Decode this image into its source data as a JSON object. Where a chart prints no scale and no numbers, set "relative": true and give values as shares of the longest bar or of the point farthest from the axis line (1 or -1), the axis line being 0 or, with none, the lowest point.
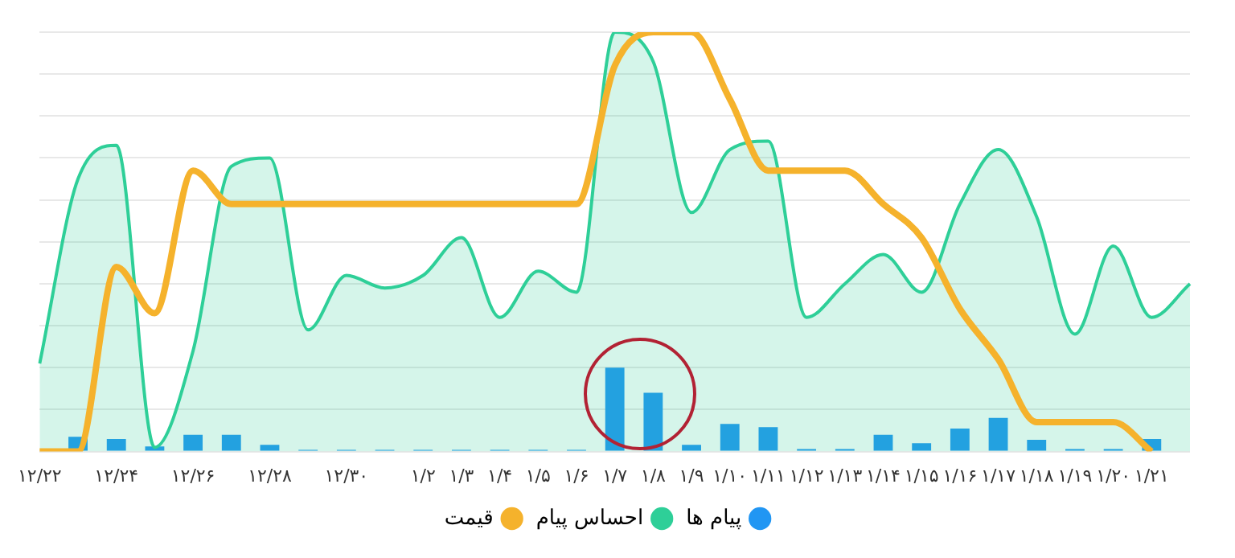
{
  "chart_data": {
    "type": "line",
    "relative": true,
    "grid": "y",
    "legend": "bottom",
    "marker": "none",
    "line_style": "solid",
    "categories": [
      "۱۲/۲۲",
      null,
      "۱۲/۲۴",
      null,
      "۱۲/۲۶",
      null,
      "۱۲/۲۸",
      null,
      "۱۲/۳۰",
      null,
      "۱/۲",
      "۱/۳",
      "۱/۴",
      "۱/۵",
      "۱/۶",
      "۱/۷",
      "۱/۸",
      "۱/۹",
      "۱/۱۰",
      "۱/۱۱",
      "۱/۱۲",
      "۱/۱۳",
      "۱/۱۴",
      "۱/۱۵",
      "۱/۱۶",
      "۱/۱۷",
      "۱/۱۸",
      "۱/۱۹",
      "۱/۲۰",
      "۱/۲۱",
      null
    ],
    "series": [
      {
        "name": "پیام ها",
        "type": "bar",
        "color": "#2196f3",
        "values": [
          null,
          0.035,
          0.03,
          0.012,
          0.04,
          0.04,
          0.016,
          0.004,
          0.004,
          0.004,
          0.004,
          0.004,
          0.004,
          0.004,
          0.004,
          0.2,
          0.14,
          0.016,
          0.066,
          0.058,
          0.006,
          0.006,
          0.04,
          0.02,
          0.055,
          0.08,
          0.028,
          0.006,
          0.006,
          0.03,
          null
        ]
      },
      {
        "name": "احساس پیام",
        "type": "area",
        "color": "#2ecf98",
        "values": [
          0.21,
          0.65,
          0.73,
          0.01,
          0.24,
          0.68,
          0.7,
          0.29,
          0.42,
          0.39,
          0.42,
          0.51,
          0.32,
          0.43,
          0.38,
          1,
          0.93,
          0.57,
          0.72,
          0.74,
          0.32,
          0.4,
          0.47,
          0.38,
          0.59,
          0.72,
          0.56,
          0.28,
          0.49,
          0.32,
          0.4
        ]
      },
      {
        "name": "قیمت",
        "color": "#f5b22c",
        "values": [
          0,
          0,
          0.44,
          0.33,
          0.67,
          0.59,
          0.59,
          0.59,
          0.59,
          0.59,
          0.59,
          0.59,
          0.59,
          0.59,
          0.59,
          0.92,
          1,
          1,
          0.84,
          0.67,
          0.67,
          0.67,
          0.59,
          0.51,
          0.34,
          0.22,
          0.07,
          0.07,
          0.07,
          0,
          null
        ]
      }
    ]
  }
}
